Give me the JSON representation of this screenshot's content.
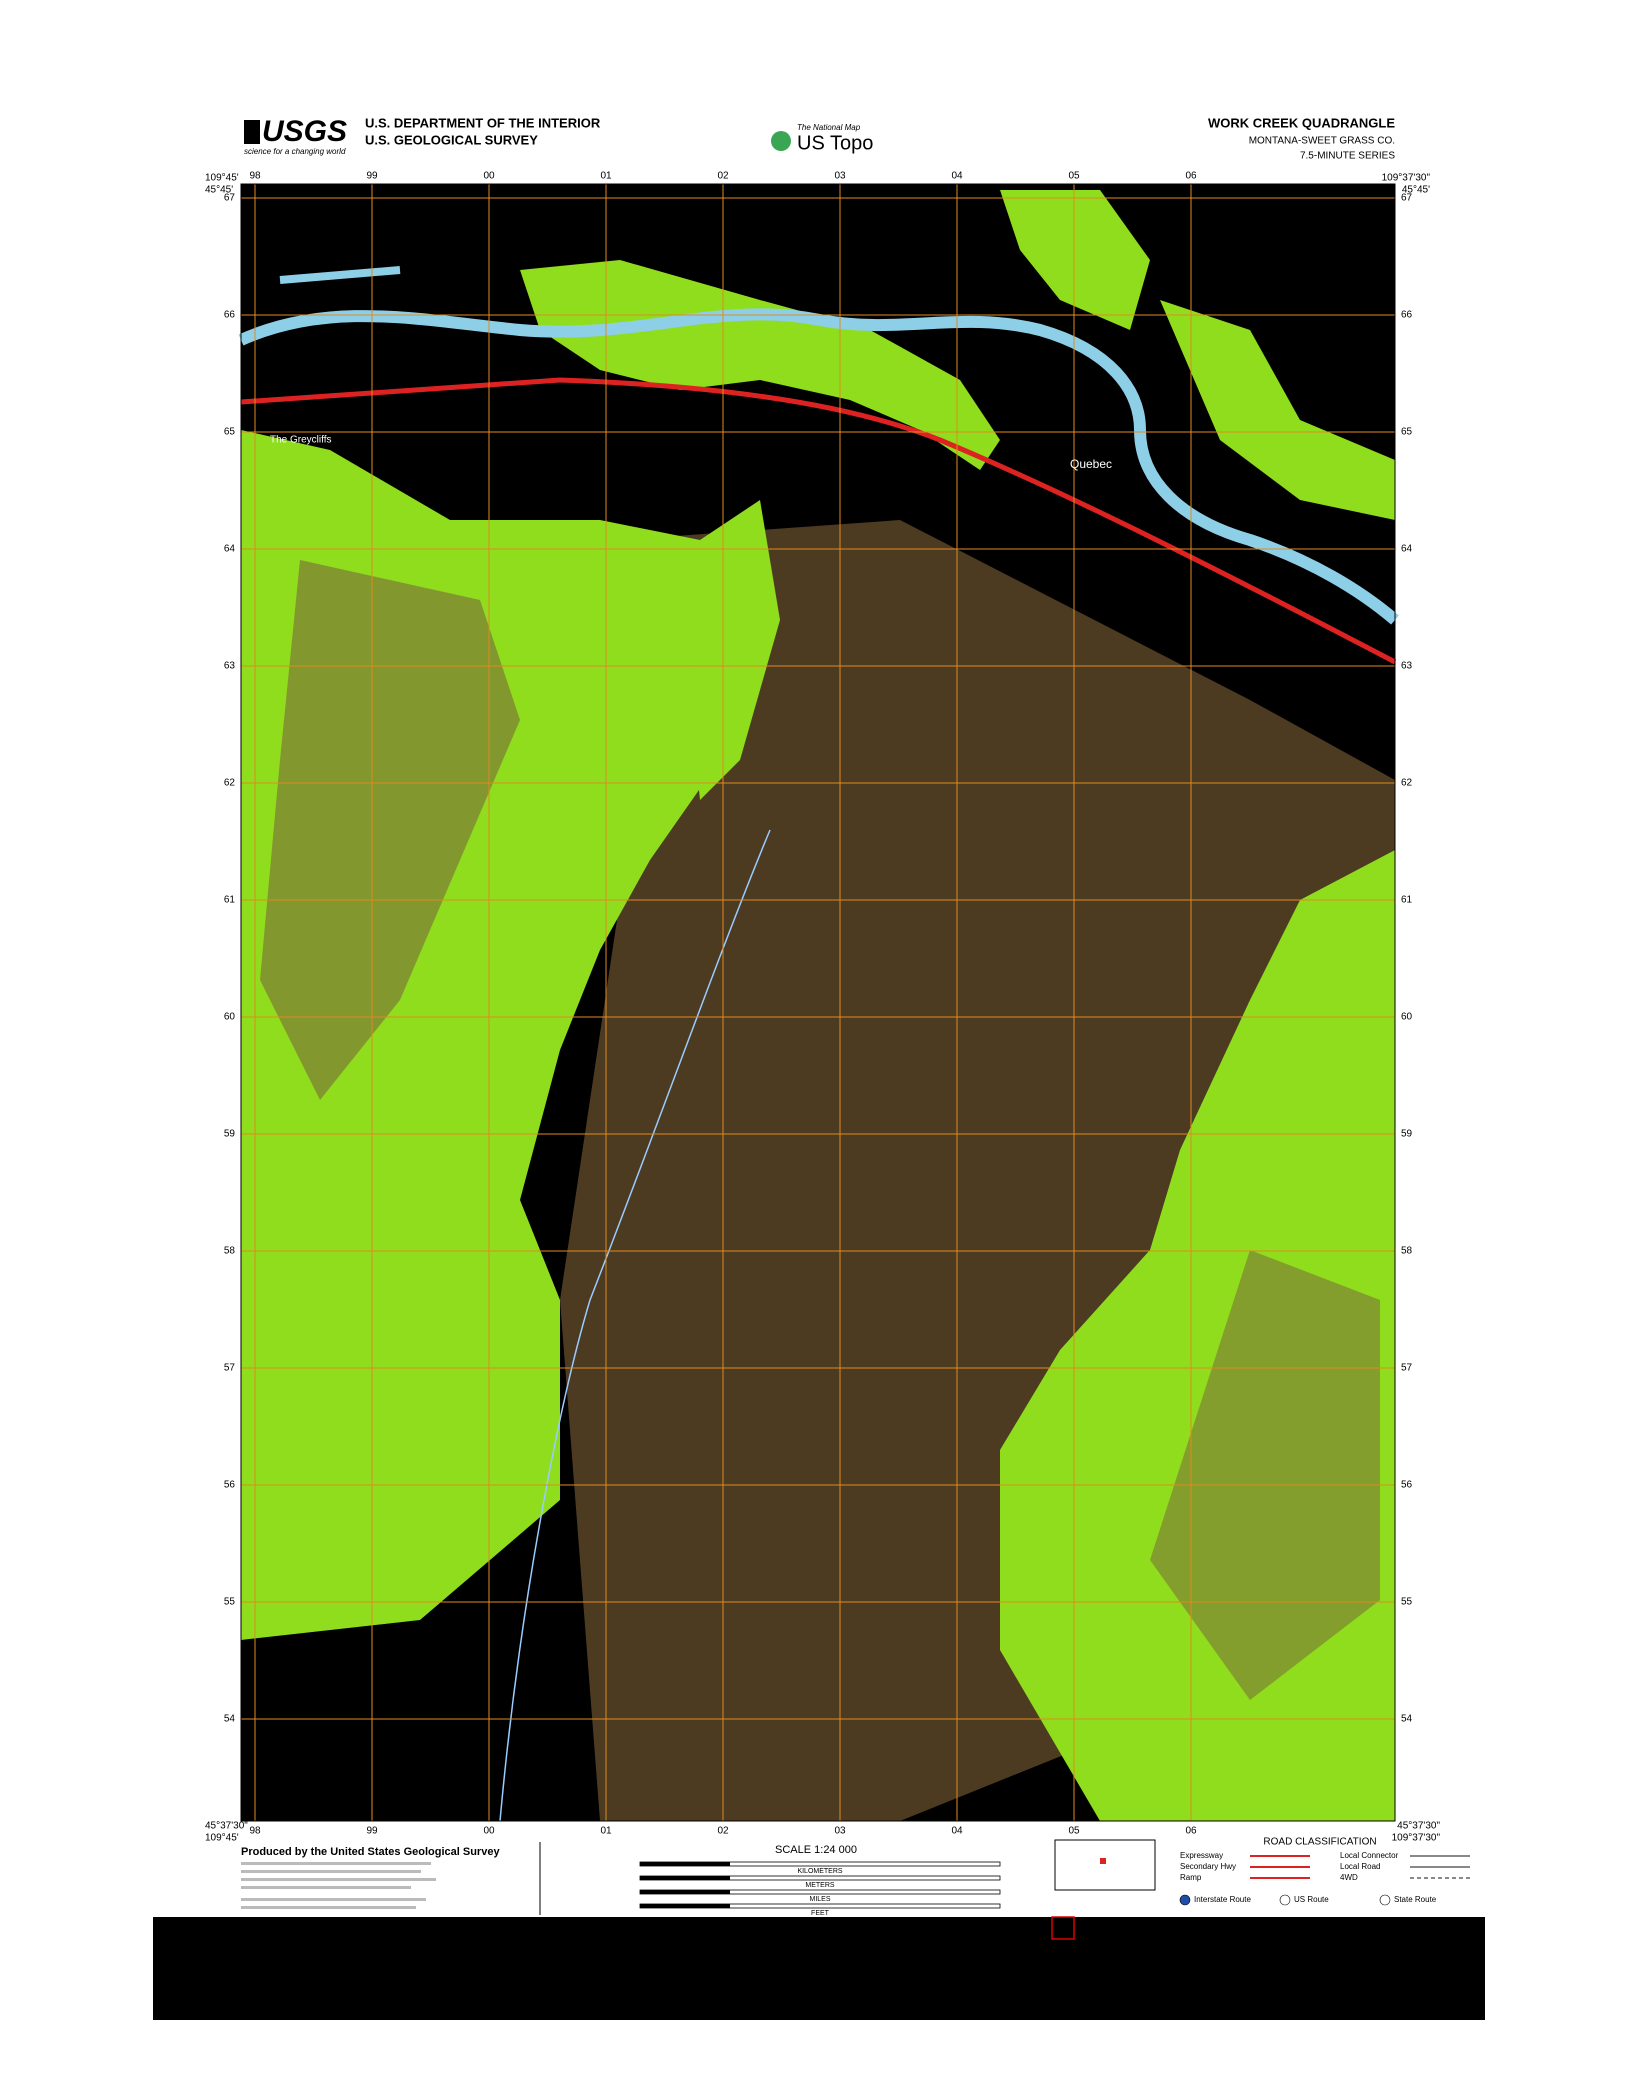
{
  "header": {
    "agency_logo": "USGS",
    "agency_tagline": "science for a changing world",
    "department": "U.S. DEPARTMENT OF THE INTERIOR",
    "survey": "U.S. GEOLOGICAL SURVEY",
    "product_tag": "The National Map",
    "product": "US Topo",
    "quadrangle": "WORK CREEK QUADRANGLE",
    "county": "MONTANA-SWEET GRASS CO.",
    "series": "7.5-MINUTE SERIES"
  },
  "map": {
    "corners": {
      "top_left_lon": "109°45'",
      "top_left_lat": "45°45'",
      "top_right_lon": "109°37'30\"",
      "top_right_lat": "45°45'",
      "bottom_left_lon": "109°45'",
      "bottom_left_lat": "45°37'30\"",
      "bottom_right_lon": "109°37'30\"",
      "bottom_right_lat": "45°37'30\""
    },
    "eastings": [
      "98",
      "99",
      "00",
      "01",
      "02",
      "03",
      "04",
      "05",
      "06"
    ],
    "northings": [
      "67",
      "66",
      "65",
      "64",
      "63",
      "62",
      "61",
      "60",
      "59",
      "58",
      "57",
      "56",
      "55",
      "54"
    ],
    "places": [
      "The Greycliffs",
      "Quebec"
    ]
  },
  "footer": {
    "producer": "Produced by the United States Geological Survey",
    "scale": "SCALE 1:24 000",
    "scale_units": [
      "KILOMETERS",
      "METERS",
      "MILES",
      "FEET"
    ],
    "road_title": "ROAD CLASSIFICATION",
    "roads": [
      "Expressway",
      "Secondary Hwy",
      "Ramp",
      "Local Connector",
      "Local Road",
      "4WD"
    ],
    "routes": [
      "Interstate Route",
      "US Route",
      "State Route"
    ]
  }
}
